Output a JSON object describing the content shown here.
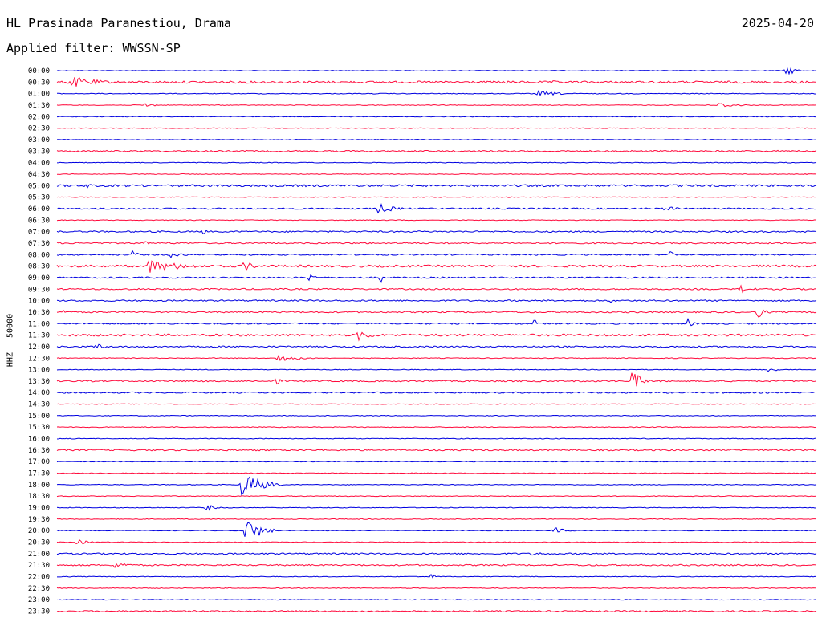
{
  "header": {
    "station": "HL Prasinada Paranestiou, Drama",
    "date": "2025-04-20",
    "filter": "Applied filter: WWSSN-SP"
  },
  "colors": {
    "odd": "#0000e0",
    "even": "#ff0a3c"
  },
  "chart_data": {
    "type": "line",
    "title": "HL Prasinada Paranestiou, Drama",
    "subtitle": "Applied filter: WWSSN-SP",
    "ylabel": "HHZ - 50000",
    "xlabel": "",
    "grid": false,
    "legend": "none",
    "trace_labels": [
      "00:00",
      "00:30",
      "01:00",
      "01:30",
      "02:00",
      "02:30",
      "03:00",
      "03:30",
      "04:00",
      "04:30",
      "05:00",
      "05:30",
      "06:00",
      "06:30",
      "07:00",
      "07:30",
      "08:00",
      "08:30",
      "09:00",
      "09:30",
      "10:00",
      "10:30",
      "11:00",
      "11:30",
      "12:00",
      "12:30",
      "13:00",
      "13:30",
      "14:00",
      "14:30",
      "15:00",
      "15:30",
      "16:00",
      "16:30",
      "17:00",
      "17:30",
      "18:00",
      "18:30",
      "19:00",
      "19:30",
      "20:00",
      "20:30",
      "21:00",
      "21:30",
      "22:00",
      "22:30",
      "23:00",
      "23:30"
    ],
    "noise_level": [
      1,
      3,
      1,
      1,
      1,
      1,
      1,
      2,
      1,
      1,
      3,
      1,
      2,
      1,
      2,
      2,
      2,
      3,
      2,
      2,
      2,
      2,
      2,
      3,
      2,
      1,
      1,
      2,
      2,
      1,
      1,
      1,
      1,
      2,
      1,
      1,
      1,
      1,
      1,
      1,
      1,
      1,
      2,
      2,
      1,
      1,
      1,
      2
    ],
    "events": [
      {
        "trace": 0,
        "minute": 28.8,
        "amp": 7,
        "dur": 0.8
      },
      {
        "trace": 1,
        "minute": 0.5,
        "amp": 8,
        "dur": 2.2
      },
      {
        "trace": 1,
        "minute": 17.7,
        "amp": 2,
        "dur": 1.8
      },
      {
        "trace": 1,
        "minute": 19.5,
        "amp": 2,
        "dur": 1.5
      },
      {
        "trace": 2,
        "minute": 19.0,
        "amp": 4,
        "dur": 1.6
      },
      {
        "trace": 3,
        "minute": 3.5,
        "amp": 3,
        "dur": 0.8
      },
      {
        "trace": 3,
        "minute": 26.0,
        "amp": 4,
        "dur": 1.6
      },
      {
        "trace": 10,
        "minute": 1.2,
        "amp": 4,
        "dur": 0.3
      },
      {
        "trace": 12,
        "minute": 12.7,
        "amp": 7,
        "dur": 1.2
      },
      {
        "trace": 12,
        "minute": 24.0,
        "amp": 3,
        "dur": 1.6
      },
      {
        "trace": 14,
        "minute": 5.7,
        "amp": 4,
        "dur": 0.6
      },
      {
        "trace": 15,
        "minute": 3.5,
        "amp": 8,
        "dur": 0.1
      },
      {
        "trace": 16,
        "minute": 3.0,
        "amp": 7,
        "dur": 0.3
      },
      {
        "trace": 16,
        "minute": 4.5,
        "amp": 4,
        "dur": 1.2
      },
      {
        "trace": 16,
        "minute": 24.2,
        "amp": 6,
        "dur": 0.4
      },
      {
        "trace": 17,
        "minute": 3.6,
        "amp": 9,
        "dur": 2.8
      },
      {
        "trace": 17,
        "minute": 7.3,
        "amp": 8,
        "dur": 1.0
      },
      {
        "trace": 18,
        "minute": 10.0,
        "amp": 10,
        "dur": 0.3
      },
      {
        "trace": 18,
        "minute": 12.8,
        "amp": 13,
        "dur": 0.1
      },
      {
        "trace": 19,
        "minute": 27.0,
        "amp": 6,
        "dur": 0.8
      },
      {
        "trace": 20,
        "minute": 21.9,
        "amp": 5,
        "dur": 0.2
      },
      {
        "trace": 21,
        "minute": 0.2,
        "amp": 6,
        "dur": 0.2
      },
      {
        "trace": 21,
        "minute": 27.7,
        "amp": 9,
        "dur": 0.5
      },
      {
        "trace": 22,
        "minute": 18.8,
        "amp": 7,
        "dur": 0.4
      },
      {
        "trace": 22,
        "minute": 24.9,
        "amp": 8,
        "dur": 0.4
      },
      {
        "trace": 23,
        "minute": 11.9,
        "amp": 7,
        "dur": 1.2
      },
      {
        "trace": 24,
        "minute": 1.5,
        "amp": 5,
        "dur": 0.8
      },
      {
        "trace": 25,
        "minute": 8.7,
        "amp": 5,
        "dur": 1.6
      },
      {
        "trace": 26,
        "minute": 28.1,
        "amp": 3,
        "dur": 0.8
      },
      {
        "trace": 27,
        "minute": 8.6,
        "amp": 5,
        "dur": 0.6
      },
      {
        "trace": 27,
        "minute": 22.7,
        "amp": 14,
        "dur": 0.8
      },
      {
        "trace": 36,
        "minute": 7.3,
        "amp": 16,
        "dur": 1.6
      },
      {
        "trace": 38,
        "minute": 5.9,
        "amp": 5,
        "dur": 0.6
      },
      {
        "trace": 40,
        "minute": 7.4,
        "amp": 18,
        "dur": 1.2
      },
      {
        "trace": 40,
        "minute": 19.6,
        "amp": 5,
        "dur": 0.9
      },
      {
        "trace": 41,
        "minute": 0.8,
        "amp": 4,
        "dur": 0.8
      },
      {
        "trace": 42,
        "minute": 18.8,
        "amp": 3,
        "dur": 1.0
      },
      {
        "trace": 43,
        "minute": 2.3,
        "amp": 7,
        "dur": 0.8
      },
      {
        "trace": 43,
        "minute": 20.8,
        "amp": 2,
        "dur": 1.2
      },
      {
        "trace": 44,
        "minute": 14.8,
        "amp": 4,
        "dur": 0.4
      }
    ]
  }
}
